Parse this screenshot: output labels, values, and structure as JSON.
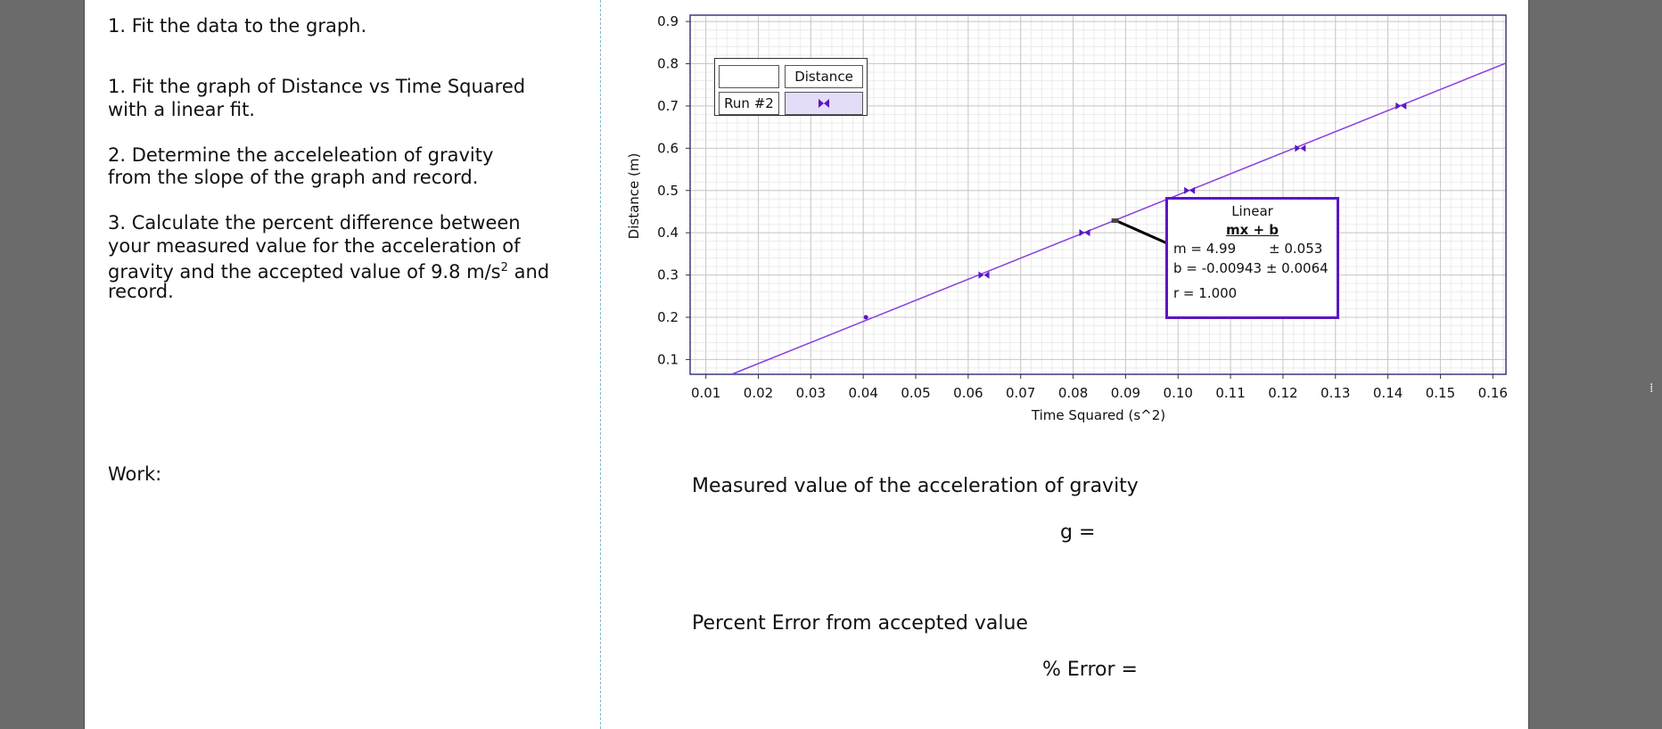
{
  "instructions": {
    "step_top": "1.  Fit the data to the graph.",
    "step1_line1": "1. Fit the graph of Distance vs Time Squared",
    "step1_line2": "with a linear fit.",
    "step2_line1": "2.  Determine the acceleleation of gravity",
    "step2_line2": "from the slope of the graph and record.",
    "step3_line1": "3.  Calculate the percent difference between",
    "step3_line2": "your measured value for the acceleration of",
    "step3_line3_pre": "gravity and the accepted value of 9.8 m/s",
    "step3_line3_sup": "2",
    "step3_line3_post": " and",
    "step3_line4": "record."
  },
  "work_label": "Work:",
  "measured": {
    "heading": "Measured value of the acceleration of gravity",
    "g_label": "g ="
  },
  "percent_error": {
    "heading": "Percent Error from accepted value",
    "label": "% Error ="
  },
  "legend": {
    "header": "Distance",
    "run_label": "Run #2",
    "marker_icon": "bowtie-marker-icon"
  },
  "fit_box": {
    "title": "Linear",
    "equation": "mx + b",
    "m_line": "m = 4.99",
    "m_unc": "± 0.053",
    "b_line": "b  = -0.00943 ± 0.0064",
    "r_line": "r = 1.000"
  },
  "colors": {
    "series": "#5b16c4",
    "fit_line": "#8a3fe0",
    "grid_major": "#c8c8c8",
    "grid_minor": "#ececec"
  },
  "chart_data": {
    "type": "scatter",
    "xlabel": "Time Squared (s^2)",
    "ylabel": "Distance (m)",
    "xlim": [
      0.007,
      0.1625
    ],
    "ylim": [
      0.065,
      0.915
    ],
    "x_ticks": [
      "0.01",
      "0.02",
      "0.03",
      "0.04",
      "0.05",
      "0.06",
      "0.07",
      "0.08",
      "0.09",
      "0.10",
      "0.11",
      "0.12",
      "0.13",
      "0.14",
      "0.15",
      "0.16"
    ],
    "y_ticks": [
      "0.1",
      "0.2",
      "0.3",
      "0.4",
      "0.5",
      "0.6",
      "0.7",
      "0.8",
      "0.9"
    ],
    "grid": true,
    "series": [
      {
        "name": "Run #2",
        "x": [
          0.0405,
          0.063,
          0.0822,
          0.1022,
          0.1233,
          0.1425
        ],
        "y": [
          0.2,
          0.3,
          0.4,
          0.5,
          0.6,
          0.7
        ]
      }
    ],
    "fit": {
      "type": "linear",
      "m": 4.99,
      "b": -0.00943,
      "annotate_x": 0.088
    }
  }
}
